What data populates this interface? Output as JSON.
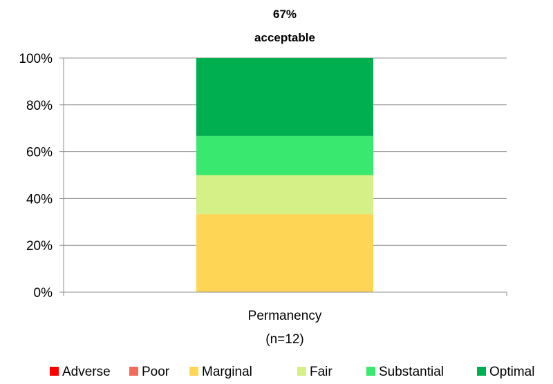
{
  "chart_data": {
    "type": "bar",
    "stacked": true,
    "percent": true,
    "title": "67%",
    "subtitle": "acceptable",
    "categories": [
      "Permanency"
    ],
    "category_sublabels": [
      "(n=12)"
    ],
    "yticks": [
      "0%",
      "20%",
      "40%",
      "60%",
      "80%",
      "100%"
    ],
    "ylim": [
      0,
      100
    ],
    "grid": true,
    "legend_position": "bottom",
    "series": [
      {
        "name": "Adverse",
        "color": "#ff0000",
        "values": [
          0
        ]
      },
      {
        "name": "Poor",
        "color": "#f26b5b",
        "values": [
          0
        ]
      },
      {
        "name": "Marginal",
        "color": "#ffd555",
        "values": [
          33.3
        ]
      },
      {
        "name": "Fair",
        "color": "#d4f086",
        "values": [
          16.7
        ]
      },
      {
        "name": "Substantial",
        "color": "#38e86f",
        "values": [
          16.7
        ]
      },
      {
        "name": "Optimal",
        "color": "#00b050",
        "values": [
          33.3
        ]
      }
    ]
  }
}
